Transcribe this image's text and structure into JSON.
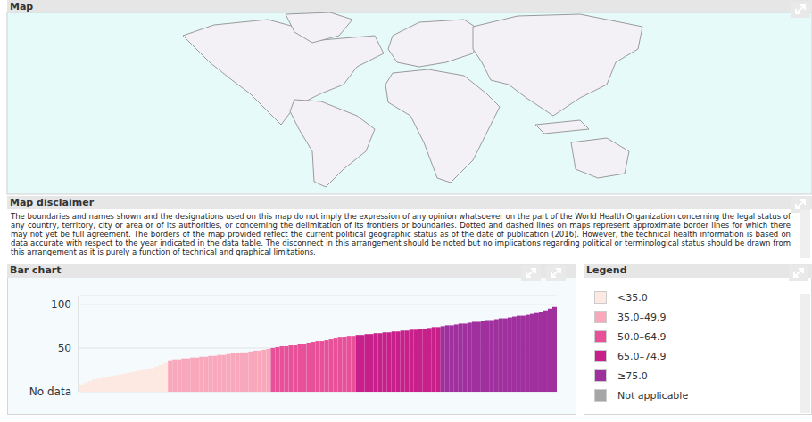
{
  "panels": {
    "map": {
      "title": "Map"
    },
    "disclaimer": {
      "title": "Map disclaimer",
      "text": "The boundaries and names shown and the designations used on this map do not imply the expression of any opinion whatsoever on the part of the World Health Organization concerning the legal status of any country, territory, city or area or of its authorities, or concerning the delimitation of its frontiers or boundaries. Dotted and dashed lines on maps represent approximate border lines for which there may not yet be full agreement. The borders of the map provided reflect the current political geographic status as of the date of publication (2016). However, the technical health information is based on data accurate with respect to the year indicated in the data table. The disconnect in this arrangement should be noted but no implications regarding political or terminological status should be drawn from this arrangement as it is purely a function of technical and graphical limitations."
    },
    "bar_chart": {
      "title": "Bar chart"
    },
    "legend": {
      "title": "Legend",
      "items": [
        {
          "label": "<35.0",
          "color": "#fde9e1"
        },
        {
          "label": "35.0–49.9",
          "color": "#f9a8bb"
        },
        {
          "label": "50.0–64.9",
          "color": "#e8519a"
        },
        {
          "label": "65.0–74.9",
          "color": "#c7208a"
        },
        {
          "label": "≥75.0",
          "color": "#a1309f"
        },
        {
          "label": "Not applicable",
          "color": "#a6a6a6"
        }
      ]
    }
  },
  "chart_data": {
    "type": "bar",
    "values": [
      8,
      10,
      12,
      14,
      15,
      16,
      17,
      18,
      19,
      20,
      21,
      22,
      23,
      24,
      25,
      26,
      27,
      29,
      31,
      33,
      36,
      37,
      37,
      38,
      38,
      39,
      39,
      40,
      40,
      41,
      41,
      42,
      42,
      43,
      44,
      44,
      45,
      45,
      46,
      47,
      47,
      48,
      49,
      50,
      51,
      52,
      52,
      53,
      54,
      55,
      55,
      56,
      57,
      58,
      58,
      59,
      60,
      61,
      62,
      63,
      64,
      64,
      65,
      65,
      66,
      66,
      67,
      67,
      68,
      68,
      69,
      69,
      70,
      70,
      71,
      71,
      72,
      72,
      73,
      74,
      74,
      75,
      76,
      76,
      77,
      78,
      78,
      79,
      80,
      80,
      81,
      82,
      82,
      83,
      84,
      84,
      85,
      86,
      87,
      87,
      88,
      89,
      90,
      91,
      93,
      95,
      97
    ],
    "colors": [
      "#fde9e1",
      "#fde9e1",
      "#fde9e1",
      "#fde9e1",
      "#fde9e1",
      "#fde9e1",
      "#fde9e1",
      "#fde9e1",
      "#fde9e1",
      "#fde9e1",
      "#fde9e1",
      "#fde9e1",
      "#fde9e1",
      "#fde9e1",
      "#fde9e1",
      "#fde9e1",
      "#fde9e1",
      "#fde9e1",
      "#fde9e1",
      "#fde9e1",
      "#f9a8bb",
      "#f9a8bb",
      "#f9a8bb",
      "#f9a8bb",
      "#f9a8bb",
      "#f9a8bb",
      "#f9a8bb",
      "#f9a8bb",
      "#f9a8bb",
      "#f9a8bb",
      "#f9a8bb",
      "#f9a8bb",
      "#f9a8bb",
      "#f9a8bb",
      "#f9a8bb",
      "#f9a8bb",
      "#f9a8bb",
      "#f9a8bb",
      "#f9a8bb",
      "#f9a8bb",
      "#f9a8bb",
      "#f9a8bb",
      "#f9a8bb",
      "#e8519a",
      "#e8519a",
      "#e8519a",
      "#e8519a",
      "#e8519a",
      "#e8519a",
      "#e8519a",
      "#e8519a",
      "#e8519a",
      "#e8519a",
      "#e8519a",
      "#e8519a",
      "#e8519a",
      "#e8519a",
      "#e8519a",
      "#e8519a",
      "#e8519a",
      "#e8519a",
      "#e8519a",
      "#c7208a",
      "#c7208a",
      "#c7208a",
      "#c7208a",
      "#c7208a",
      "#c7208a",
      "#c7208a",
      "#c7208a",
      "#c7208a",
      "#c7208a",
      "#c7208a",
      "#c7208a",
      "#c7208a",
      "#c7208a",
      "#c7208a",
      "#c7208a",
      "#c7208a",
      "#c7208a",
      "#c7208a",
      "#a1309f",
      "#a1309f",
      "#a1309f",
      "#a1309f",
      "#a1309f",
      "#a1309f",
      "#a1309f",
      "#a1309f",
      "#a1309f",
      "#a1309f",
      "#a1309f",
      "#a1309f",
      "#a1309f",
      "#a1309f",
      "#a1309f",
      "#a1309f",
      "#a1309f",
      "#a1309f",
      "#a1309f",
      "#a1309f",
      "#a1309f",
      "#a1309f",
      "#a1309f",
      "#a1309f",
      "#a1309f",
      "#a1309f"
    ],
    "ylim": [
      0,
      110
    ],
    "yticks": [
      {
        "value": 0,
        "label": "No data"
      },
      50,
      100
    ],
    "grid": true,
    "tick_labels": "y"
  }
}
